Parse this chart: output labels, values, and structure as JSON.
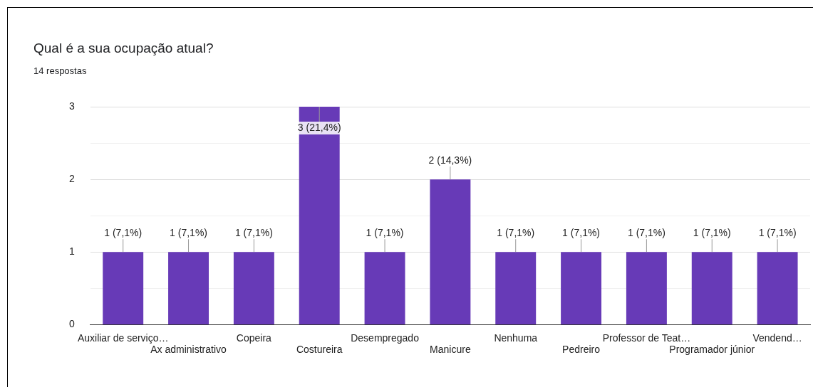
{
  "chart_data": {
    "type": "bar",
    "title": "Qual é a sua ocupação atual?",
    "subtitle": "14 respostas",
    "categories": [
      "Auxiliar de serviço…",
      "Ax administrativo",
      "Copeira",
      "Costureira",
      "Desempregado",
      "Manicure",
      "Nenhuma",
      "Pedreiro",
      "Professor de Teat…",
      "Programador júnior",
      "Vendend…"
    ],
    "values": [
      1,
      1,
      1,
      3,
      1,
      2,
      1,
      1,
      1,
      1,
      1
    ],
    "value_labels": [
      "1 (7,1%)",
      "1 (7,1%)",
      "1 (7,1%)",
      "3 (21,4%)",
      "1 (7,1%)",
      "2 (14,3%)",
      "1 (7,1%)",
      "1 (7,1%)",
      "1 (7,1%)",
      "1 (7,1%)",
      "1 (7,1%)"
    ],
    "color": "#673ab7",
    "ylim": [
      0,
      3
    ],
    "yticks": [
      0,
      {
        "value": 0.5,
        "label": null
      },
      1,
      {
        "value": 1.5,
        "label": null
      },
      2,
      {
        "value": 2.5,
        "label": null
      },
      3
    ],
    "grid": "y",
    "legend": false
  }
}
